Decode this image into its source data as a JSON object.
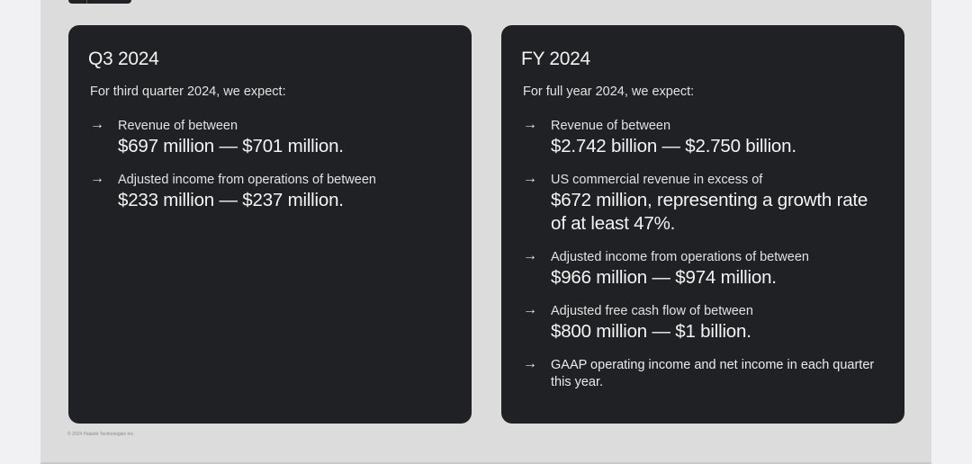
{
  "q3": {
    "title": "Q3 2024",
    "intro": "For third quarter 2024, we expect:",
    "items": [
      {
        "label": "Revenue of between",
        "value": "$697 million — $701 million."
      },
      {
        "label": "Adjusted income from operations of between",
        "value": "$233 million — $237 million."
      }
    ]
  },
  "fy": {
    "title": "FY 2024",
    "intro": "For full year 2024, we expect:",
    "items": [
      {
        "label": "Revenue of between",
        "value": "$2.742 billion — $2.750 billion."
      },
      {
        "label": "US commercial revenue in excess of",
        "value": "$672 million, representing a growth rate of at least 47%."
      },
      {
        "label": "Adjusted income from operations of between",
        "value": "$966 million — $974 million."
      },
      {
        "label": "Adjusted free cash flow of between",
        "value": "$800 million — $1 billion."
      },
      {
        "text": "GAAP operating income and net income in each quarter this year."
      }
    ]
  },
  "arrow_icon": "→",
  "footer": "© 2024 Palantir Technologies Inc."
}
